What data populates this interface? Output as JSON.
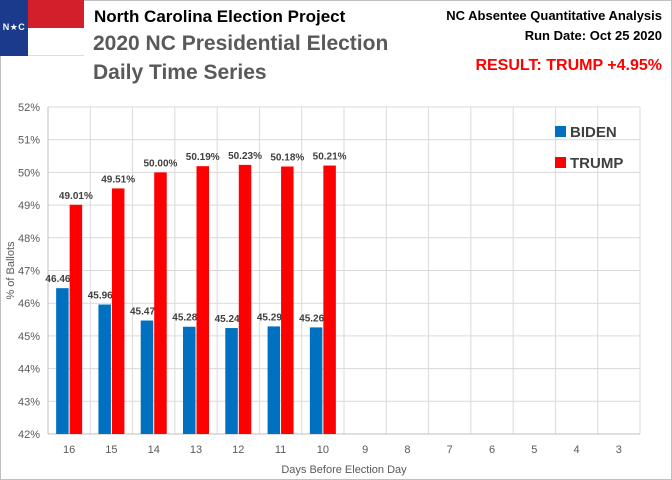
{
  "header": {
    "project": "North Carolina Election Project",
    "title": "2020 NC Presidential Election",
    "subtitle": "Daily Time Series",
    "analysis": "NC Absentee Quantitative Analysis",
    "run_date": "Run Date: Oct 25 2020",
    "result": "RESULT: TRUMP +4.95%"
  },
  "flag": {
    "text_left": "N",
    "text_star": "★",
    "text_right": "C"
  },
  "colors": {
    "biden": "#0070c0",
    "trump": "#ff0000",
    "result": "#ff0000",
    "flag_blue": "#1b3a8c",
    "flag_red": "#d21f2b"
  },
  "chart_data": {
    "type": "bar",
    "title": "2020 NC Presidential Election Daily Time Series",
    "xlabel": "Days Before Election Day",
    "ylabel": "% of Ballots",
    "ylim": [
      42,
      52
    ],
    "yticks": [
      42,
      43,
      44,
      45,
      46,
      47,
      48,
      49,
      50,
      51,
      52
    ],
    "ytick_labels": [
      "42%",
      "43%",
      "44%",
      "45%",
      "46%",
      "47%",
      "48%",
      "49%",
      "50%",
      "51%",
      "52%"
    ],
    "grid": true,
    "legend_position": "top-right",
    "categories": [
      "16",
      "15",
      "14",
      "13",
      "12",
      "11",
      "10",
      "9",
      "8",
      "7",
      "6",
      "5",
      "4",
      "3"
    ],
    "series": [
      {
        "name": "BIDEN",
        "color": "#0070c0",
        "values": [
          46.46,
          45.96,
          45.47,
          45.28,
          45.24,
          45.29,
          45.26,
          null,
          null,
          null,
          null,
          null,
          null,
          null
        ],
        "labels": [
          "46.46%",
          "45.96%",
          "45.47%",
          "45.28%",
          "45.24%",
          "45.29%",
          "45.26%",
          "",
          "",
          "",
          "",
          "",
          "",
          ""
        ]
      },
      {
        "name": "TRUMP",
        "color": "#ff0000",
        "values": [
          49.01,
          49.51,
          50.0,
          50.19,
          50.23,
          50.18,
          50.21,
          null,
          null,
          null,
          null,
          null,
          null,
          null
        ],
        "labels": [
          "49.01%",
          "49.51%",
          "50.00%",
          "50.19%",
          "50.23%",
          "50.18%",
          "50.21%",
          "",
          "",
          "",
          "",
          "",
          "",
          ""
        ]
      }
    ]
  }
}
